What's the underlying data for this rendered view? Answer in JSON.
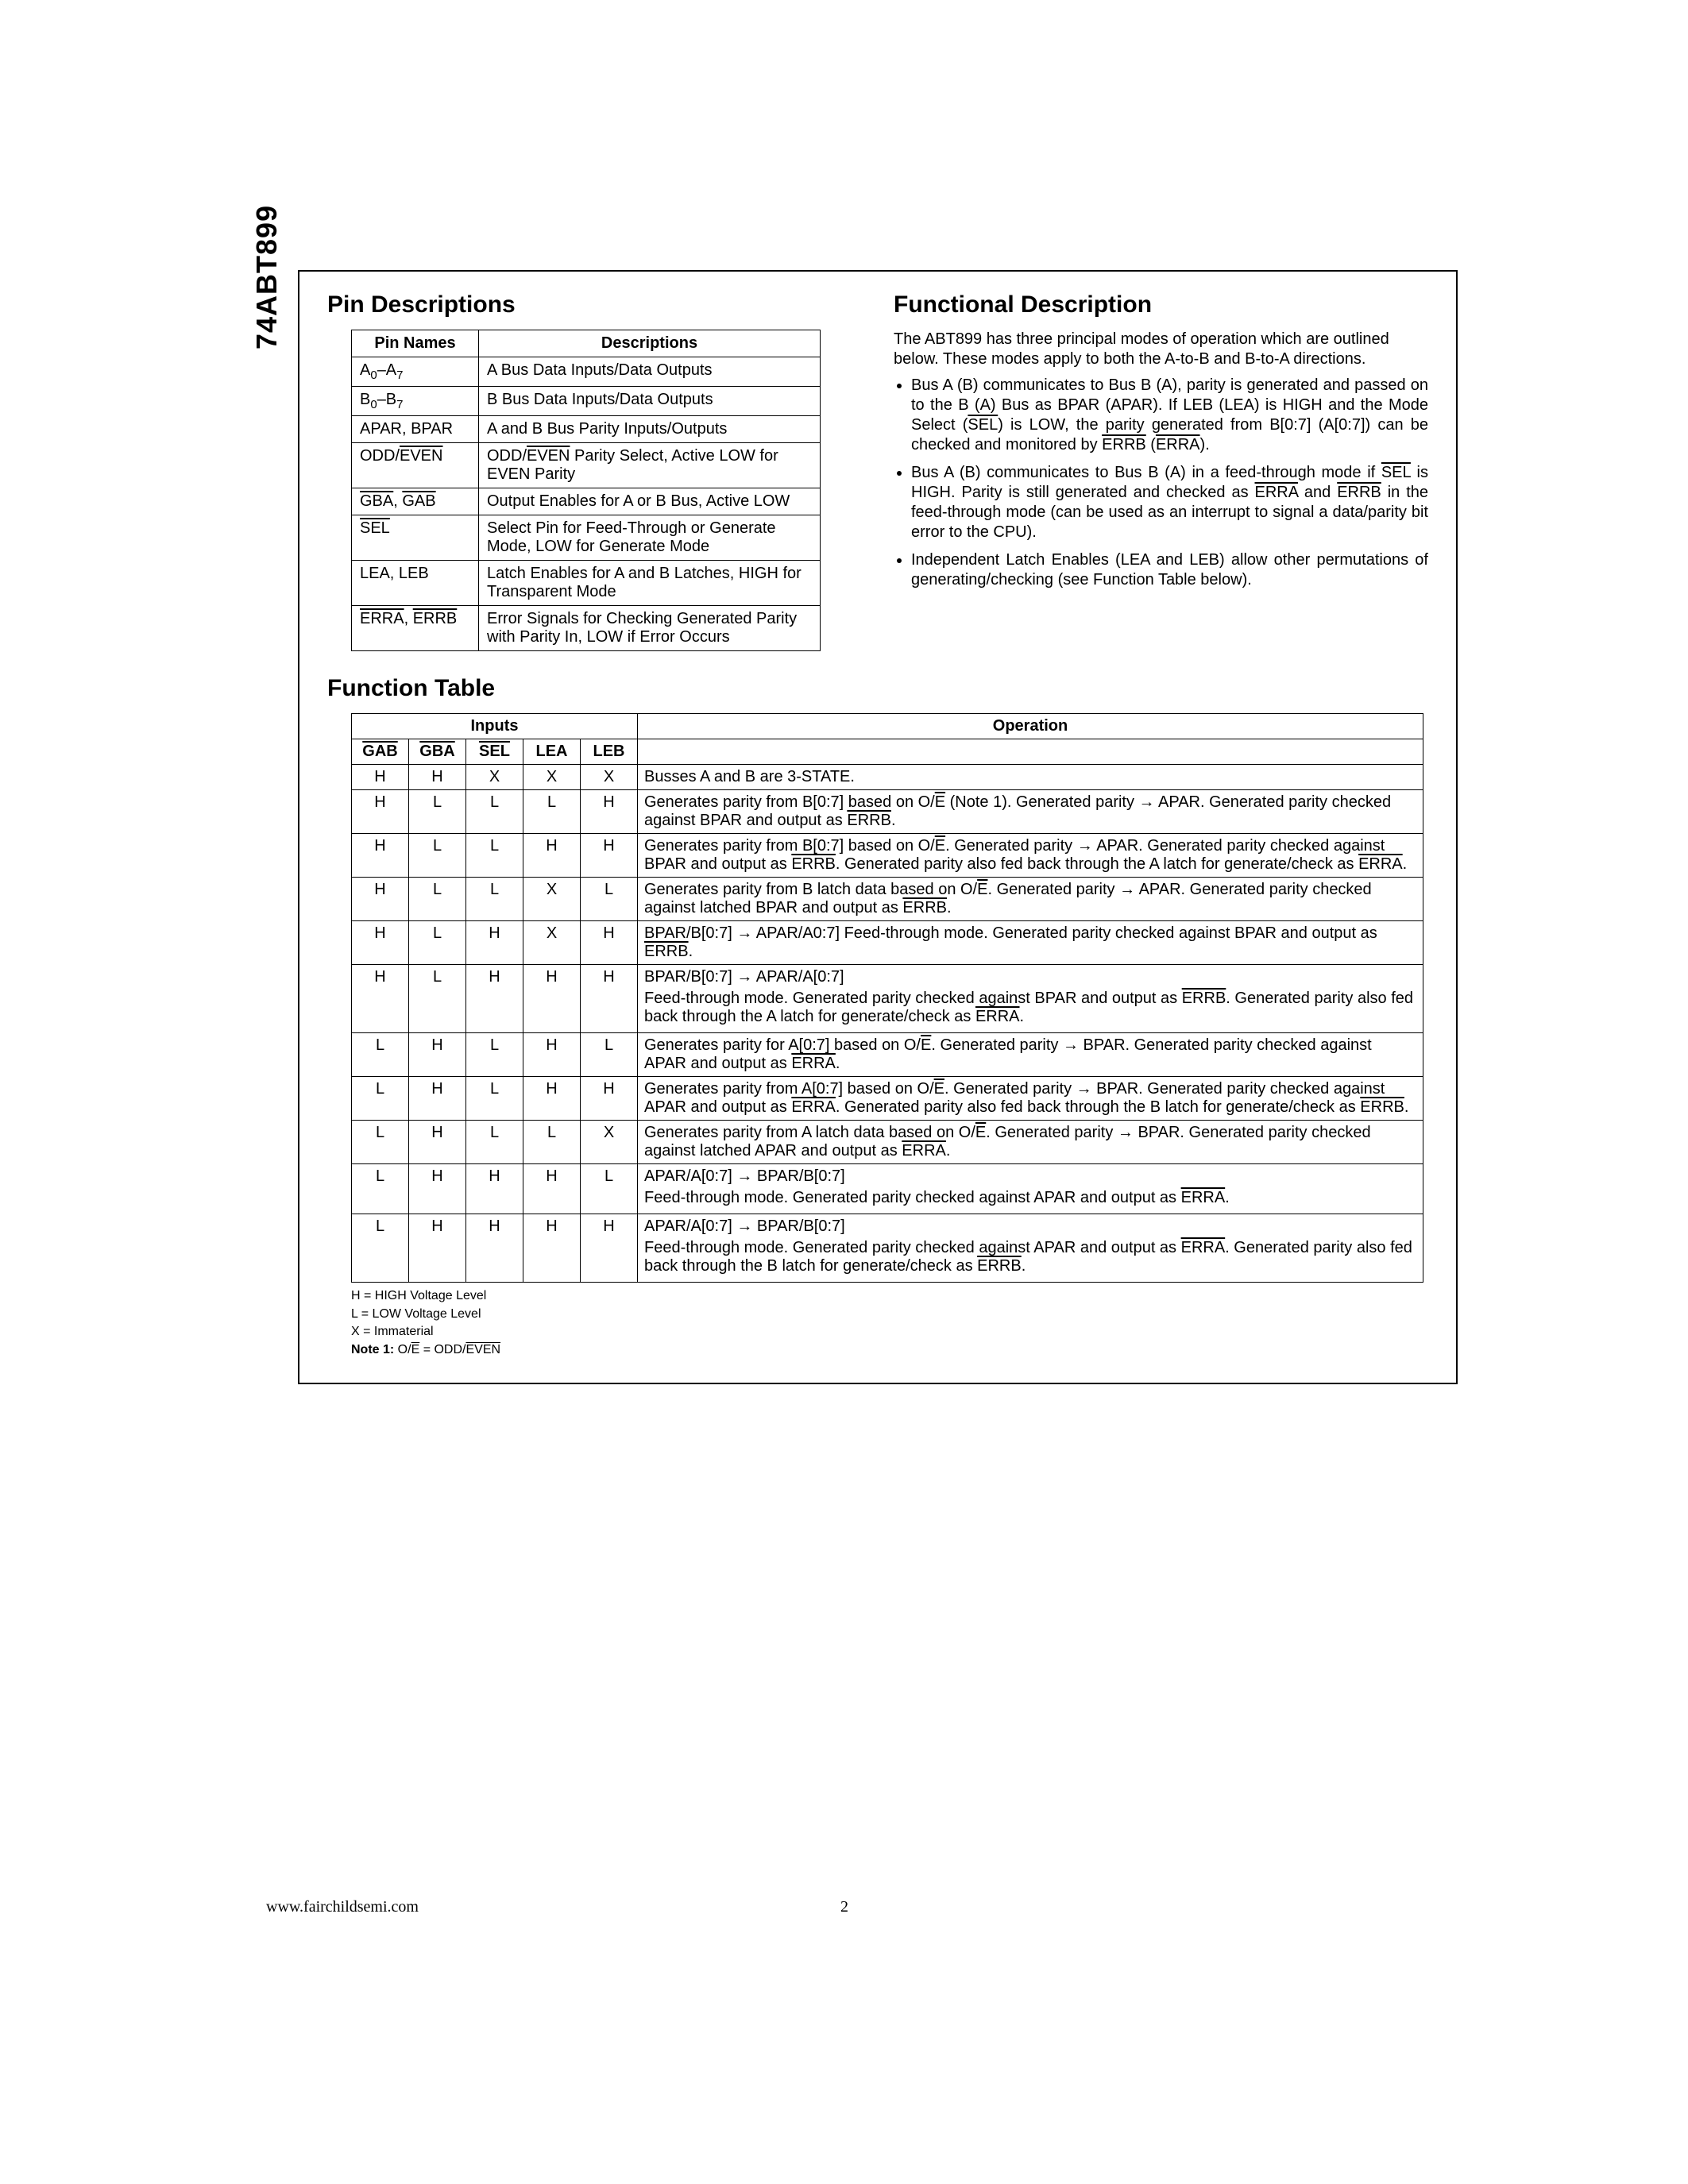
{
  "side_label": "74ABT899",
  "pin_descriptions": {
    "heading": "Pin Descriptions",
    "headers": [
      "Pin Names",
      "Descriptions"
    ],
    "rows": [
      {
        "name_html": "A<sub>0</sub>–A<sub>7</sub>",
        "desc_html": "A Bus Data Inputs/Data Outputs"
      },
      {
        "name_html": "B<sub>0</sub>–B<sub>7</sub>",
        "desc_html": "B Bus Data Inputs/Data Outputs"
      },
      {
        "name_html": "APAR, BPAR",
        "desc_html": "A and B Bus Parity Inputs/Outputs"
      },
      {
        "name_html": "ODD/<span class=\"ov\">EVEN</span>",
        "desc_html": "ODD/<span class=\"ov\">EVEN</span> Parity Select, Active LOW for EVEN Parity"
      },
      {
        "name_html": "<span class=\"ov\">GBA</span>, <span class=\"ov\">GAB</span>",
        "desc_html": "Output Enables for A or B Bus, Active LOW"
      },
      {
        "name_html": "<span class=\"ov\">SEL</span>",
        "desc_html": "Select Pin for Feed-Through or Generate Mode, LOW for Generate Mode"
      },
      {
        "name_html": "LEA, LEB",
        "desc_html": "Latch Enables for A and B Latches, HIGH for Transparent Mode"
      },
      {
        "name_html": "<span class=\"ov\">ERRA</span>, <span class=\"ov\">ERRB</span>",
        "desc_html": "Error Signals for Checking Generated Parity with Parity In, LOW if Error Occurs"
      }
    ]
  },
  "functional_description": {
    "heading": "Functional Description",
    "intro": "The ABT899 has three principal modes of operation which are outlined below. These modes apply to both the A-to-B and B-to-A directions.",
    "bullets_html": [
      "Bus A (B) communicates to Bus B (A), parity is generated and passed on to the B (A) Bus as BPAR (APAR). If LEB (LEA) is HIGH and the Mode Select (<span class=\"ov\">SEL</span>) is LOW, the parity generated from B[0:7] (A[0:7]) can be checked and monitored by <span class=\"ov\">ERRB</span> (<span class=\"ov\">ERRA</span>).",
      "Bus A (B) communicates to Bus B (A) in a feed-through mode if <span class=\"ov\">SEL</span> is HIGH. Parity is still generated and checked as <span class=\"ov\">ERRA</span> and <span class=\"ov\">ERRB</span> in the feed-through mode (can be used as an interrupt to signal a data/parity bit error to the CPU).",
      "Independent Latch Enables (LEA and LEB) allow other permutations of generating/checking (see Function Table below)."
    ]
  },
  "function_table": {
    "heading": "Function Table",
    "group_headers": [
      "Inputs",
      "Operation"
    ],
    "col_headers_html": [
      "<span class=\"ov\">GAB</span>",
      "<span class=\"ov\">GBA</span>",
      "<span class=\"ov\">SEL</span>",
      "LEA",
      "LEB"
    ],
    "rows": [
      {
        "in": [
          "H",
          "H",
          "X",
          "X",
          "X"
        ],
        "op_html": "Busses A and B are 3-STATE."
      },
      {
        "in": [
          "H",
          "L",
          "L",
          "L",
          "H"
        ],
        "op_html": "Generates parity from B[0:7] based on O/<span class=\"ov\">E</span> (Note 1). Generated parity → APAR. Generated parity checked against BPAR and output as <span class=\"ov\">ERRB</span>."
      },
      {
        "in": [
          "H",
          "L",
          "L",
          "H",
          "H"
        ],
        "op_html": "Generates parity from B[0:7] based on O/<span class=\"ov\">E</span>. Generated parity → APAR. Generated parity checked against BPAR and output as <span class=\"ov\">ERRB</span>. Generated parity also fed back through the A latch for generate/check as <span class=\"ov\">ERRA</span>."
      },
      {
        "in": [
          "H",
          "L",
          "L",
          "X",
          "L"
        ],
        "op_html": "Generates parity from B latch data based on O/<span class=\"ov\">E</span>. Generated parity → APAR. Generated parity checked against latched BPAR and output as <span class=\"ov\">ERRB</span>."
      },
      {
        "in": [
          "H",
          "L",
          "H",
          "X",
          "H"
        ],
        "op_html": "BPAR/B[0:7] → APAR/A0:7] Feed-through mode. Generated parity checked against BPAR and output as <span class=\"ov\">ERRB</span>."
      },
      {
        "in": [
          "H",
          "L",
          "H",
          "H",
          "H"
        ],
        "op_html": "<p>BPAR/B[0:7] → APAR/A[0:7]</p><p>Feed-through mode. Generated parity checked against BPAR and output as <span class=\"ov\">ERRB</span>. Generated parity also fed back through the A latch for generate/check as <span class=\"ov\">ERRA</span>.</p>"
      },
      {
        "in": [
          "L",
          "H",
          "L",
          "H",
          "L"
        ],
        "op_html": "Generates parity for A[0:7] based on O/<span class=\"ov\">E</span>. Generated parity → BPAR. Generated parity checked against APAR and output as <span class=\"ov\">ERRA</span>."
      },
      {
        "in": [
          "L",
          "H",
          "L",
          "H",
          "H"
        ],
        "op_html": "Generates parity from A[0:7] based on O/<span class=\"ov\">E</span>. Generated parity → BPAR. Generated parity checked against APAR and output as <span class=\"ov\">ERRA</span>. Generated parity also fed back through the B latch for generate/check as <span class=\"ov\">ERRB</span>."
      },
      {
        "in": [
          "L",
          "H",
          "L",
          "L",
          "X"
        ],
        "op_html": "Generates parity from A latch data based on O/<span class=\"ov\">E</span>. Generated parity → BPAR. Generated parity checked against latched APAR and output as <span class=\"ov\">ERRA</span>."
      },
      {
        "in": [
          "L",
          "H",
          "H",
          "H",
          "L"
        ],
        "op_html": "<p>APAR/A[0:7] → BPAR/B[0:7]</p><p>Feed-through mode. Generated parity checked against APAR and output as <span class=\"ov\">ERRA</span>.</p>"
      },
      {
        "in": [
          "L",
          "H",
          "H",
          "H",
          "H"
        ],
        "op_html": "<p>APAR/A[0:7] → BPAR/B[0:7]</p><p>Feed-through mode. Generated parity checked against APAR and output as <span class=\"ov\">ERRA</span>. Generated parity also fed back through the B latch for generate/check as <span class=\"ov\">ERRB</span>.</p>"
      }
    ],
    "notes": [
      "H = HIGH Voltage Level",
      "L = LOW Voltage Level",
      "X = Immaterial"
    ],
    "note1_html": "<b>Note 1:</b> O/<span class=\"ov\">E</span> = ODD/<span class=\"ov\">EVEN</span>"
  },
  "footer": {
    "url": "www.fairchildsemi.com",
    "page": "2"
  }
}
